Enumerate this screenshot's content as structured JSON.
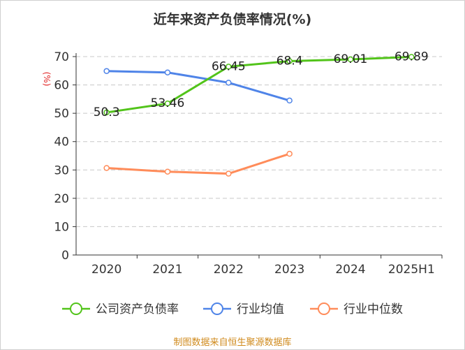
{
  "chart_data": {
    "type": "line",
    "title": "近年来资产负债率情况(%)",
    "ylabel": "(%)",
    "ylim": [
      0,
      70
    ],
    "yticks": [
      0,
      10,
      20,
      30,
      40,
      50,
      60,
      70
    ],
    "grid": true,
    "legend": "bottom",
    "categories": [
      "2020",
      "2021",
      "2022",
      "2023",
      "2024",
      "2025H1"
    ],
    "series": [
      {
        "name": "公司资产负债率",
        "color": "#52c41a",
        "values": [
          50.3,
          53.46,
          66.45,
          68.4,
          69.01,
          69.89
        ],
        "labels": [
          "50.3",
          "53.46",
          "66.45",
          "68.4",
          "69.01",
          "69.89"
        ]
      },
      {
        "name": "行业均值",
        "color": "#4f84e8",
        "values": [
          64.9,
          64.4,
          60.8,
          54.5,
          null,
          null
        ]
      },
      {
        "name": "行业中位数",
        "color": "#ff8c5a",
        "values": [
          30.7,
          29.4,
          28.7,
          35.7,
          null,
          null
        ]
      }
    ]
  },
  "source": "制图数据来自恒生聚源数据库"
}
